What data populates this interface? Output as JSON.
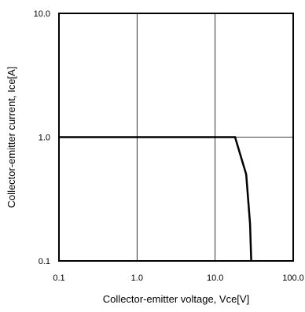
{
  "chart_data": {
    "type": "line",
    "title": "",
    "xlabel": "Collector-emitter voltage, Vce[V]",
    "ylabel": "Collector-emitter current, Ice[A]",
    "xscale": "log",
    "yscale": "log",
    "xlim": [
      0.1,
      100.0
    ],
    "ylim": [
      0.1,
      10.0
    ],
    "x_ticks": [
      0.1,
      1.0,
      10.0,
      100.0
    ],
    "x_tick_labels": [
      "0.1",
      "1.0",
      "10.0",
      "100.0"
    ],
    "y_ticks": [
      0.1,
      1.0,
      10.0
    ],
    "y_tick_labels": [
      "0.1",
      "1.0",
      "10.0"
    ],
    "grid": true,
    "legend": "none",
    "series": [
      {
        "x": [
          0.1,
          18,
          25,
          28,
          29
        ],
        "y": [
          1.0,
          1.0,
          0.5,
          0.2,
          0.1
        ],
        "color": "#000000"
      }
    ]
  }
}
